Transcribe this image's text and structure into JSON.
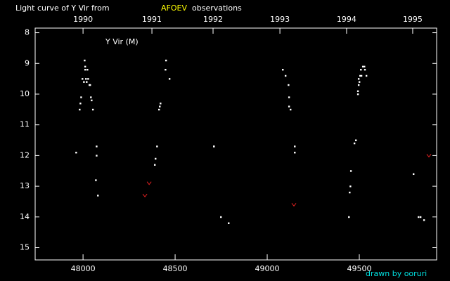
{
  "chart_data": {
    "type": "scatter",
    "title": "Light curve of Y Vir from",
    "title_highlight": "AFOEV",
    "title_end": "observations",
    "label": "Y Vir (M)",
    "credit": "drawn by ooruri",
    "xlim": [
      47740,
      49920
    ],
    "xticks": [
      48000,
      48500,
      49000,
      49500
    ],
    "x2ticks": [
      {
        "value": 48000,
        "label": "1990"
      },
      {
        "value": 48374,
        "label": "1991"
      },
      {
        "value": 48706,
        "label": "1992"
      },
      {
        "value": 49069,
        "label": "1993"
      },
      {
        "value": 49431,
        "label": "1994"
      },
      {
        "value": 49790,
        "label": "1995"
      }
    ],
    "ylim": [
      15.4,
      7.85
    ],
    "yticks": [
      8,
      9,
      10,
      11,
      12,
      13,
      14,
      15
    ],
    "series": [
      {
        "color": "#ffffff",
        "marker": "dot",
        "x": [
          47962,
          47981,
          47985,
          47989,
          47996,
          48004,
          48008,
          48011,
          48011,
          48015,
          48019,
          48023,
          48027,
          48034,
          48038,
          48042,
          48046,
          48053,
          48073,
          48073,
          48069,
          48080,
          48420,
          48416,
          48412,
          48401,
          48393,
          48389,
          48450,
          48447,
          48469,
          48710,
          48710,
          48748,
          48790,
          49084,
          49099,
          49115,
          49118,
          49118,
          49126,
          49149,
          49149,
          49454,
          49451,
          49447,
          49443,
          49481,
          49473,
          49492,
          49492,
          49496,
          49496,
          49500,
          49504,
          49508,
          49511,
          49519,
          49527,
          49530,
          49538,
          49794,
          49821,
          49832,
          49851
        ],
        "values": [
          11.9,
          10.5,
          10.3,
          10.1,
          9.5,
          9.6,
          8.9,
          9.1,
          9.2,
          9.5,
          9.6,
          9.2,
          9.5,
          9.7,
          9.7,
          10.1,
          10.2,
          10.5,
          11.7,
          12.0,
          12.8,
          13.3,
          10.3,
          10.4,
          10.5,
          11.7,
          12.1,
          12.3,
          8.9,
          9.2,
          9.5,
          11.7,
          11.7,
          14.0,
          14.2,
          9.2,
          9.4,
          9.7,
          10.1,
          10.4,
          10.5,
          11.7,
          11.9,
          12.5,
          13.0,
          13.2,
          14.0,
          11.5,
          11.6,
          9.9,
          10.0,
          9.7,
          9.5,
          9.6,
          9.4,
          9.2,
          9.4,
          9.1,
          9.1,
          9.2,
          9.4,
          12.6,
          14.0,
          14.0,
          14.1
        ]
      },
      {
        "color": "#e02020",
        "marker": "v",
        "x": [
          48336,
          48359,
          49145,
          49878
        ],
        "values": [
          13.3,
          12.9,
          13.6,
          12.0
        ]
      }
    ]
  }
}
